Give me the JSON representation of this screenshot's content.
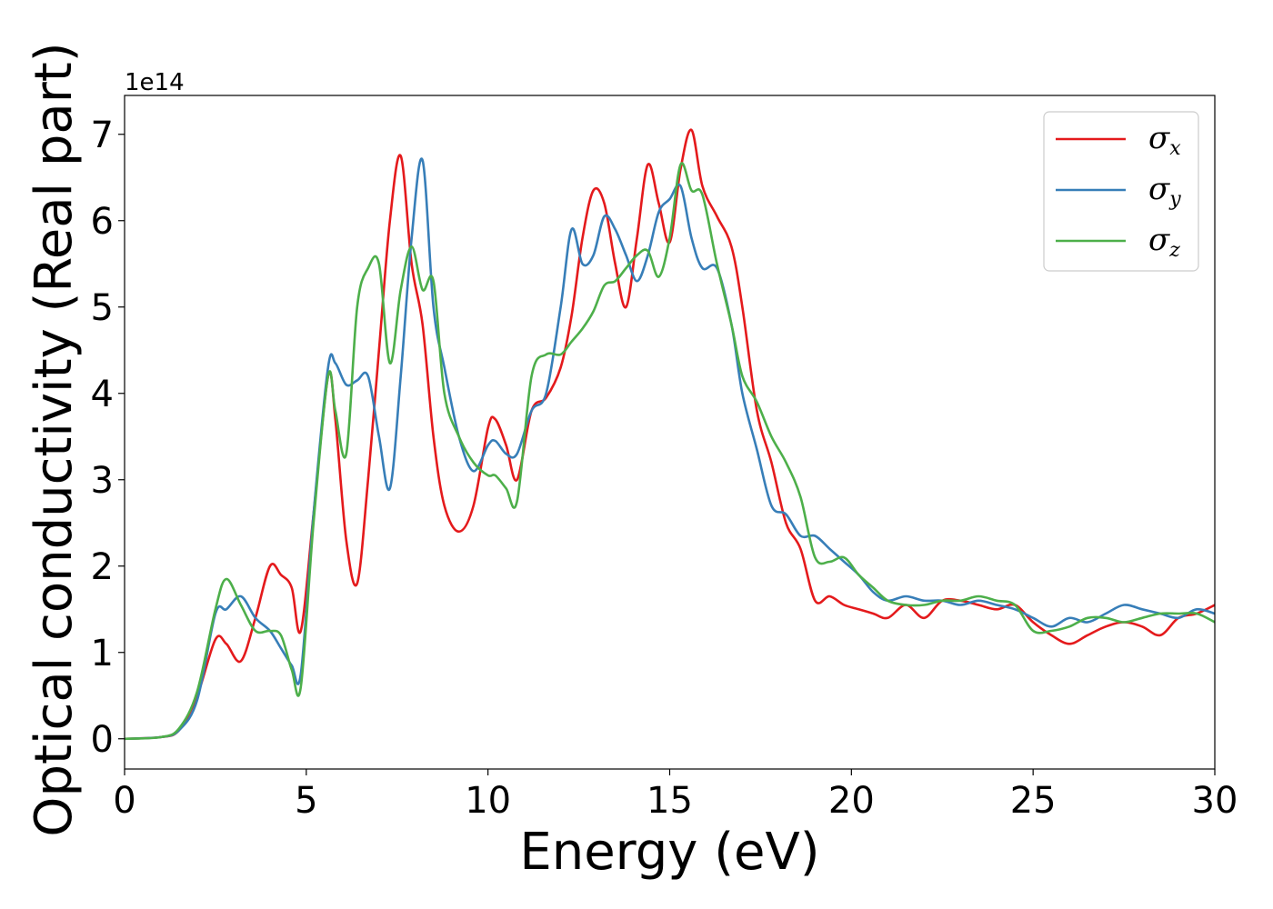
{
  "chart_data": {
    "type": "line",
    "title": "",
    "xlabel": "Energy (eV)",
    "ylabel": "Optical conductivity (Real part)",
    "y_offset_label": "1e14",
    "xlim": [
      0,
      30
    ],
    "ylim": [
      -0.35,
      7.45
    ],
    "x_ticks": [
      0,
      5,
      10,
      15,
      20,
      25,
      30
    ],
    "y_ticks": [
      0,
      1,
      2,
      3,
      4,
      5,
      6,
      7
    ],
    "grid": false,
    "legend": "top-right",
    "x": [
      0,
      1,
      1.5,
      2,
      2.5,
      2.8,
      3.2,
      3.6,
      4,
      4.3,
      4.6,
      4.85,
      5.2,
      5.6,
      5.8,
      6.1,
      6.4,
      6.7,
      7,
      7.3,
      7.6,
      7.9,
      8.2,
      8.5,
      8.8,
      9.2,
      9.6,
      10,
      10.2,
      10.5,
      10.8,
      11.2,
      11.6,
      12,
      12.3,
      12.6,
      12.9,
      13.2,
      13.5,
      13.8,
      14.1,
      14.4,
      14.7,
      15,
      15.3,
      15.6,
      15.9,
      16.3,
      16.7,
      17,
      17.4,
      17.8,
      18.2,
      18.6,
      19,
      19.4,
      19.8,
      20.2,
      20.6,
      21,
      21.5,
      22,
      22.5,
      23,
      23.5,
      24,
      24.5,
      25,
      25.5,
      26,
      26.5,
      27,
      27.5,
      28,
      28.5,
      29,
      29.5,
      30
    ],
    "series": [
      {
        "name": "σx",
        "color": "#e41a1c",
        "values": [
          0,
          0.02,
          0.1,
          0.5,
          1.15,
          1.1,
          0.9,
          1.4,
          2.0,
          1.9,
          1.75,
          1.25,
          2.6,
          4.2,
          3.7,
          2.3,
          1.8,
          3.0,
          4.5,
          6.0,
          6.75,
          5.5,
          4.8,
          3.5,
          2.7,
          2.4,
          2.7,
          3.6,
          3.7,
          3.4,
          3.0,
          3.8,
          3.95,
          4.3,
          4.9,
          5.8,
          6.35,
          6.2,
          5.5,
          5.0,
          5.8,
          6.65,
          6.2,
          5.75,
          6.6,
          7.05,
          6.4,
          6.05,
          5.7,
          5.0,
          3.8,
          3.2,
          2.5,
          2.2,
          1.6,
          1.65,
          1.55,
          1.5,
          1.45,
          1.4,
          1.55,
          1.4,
          1.6,
          1.6,
          1.55,
          1.5,
          1.55,
          1.35,
          1.2,
          1.1,
          1.2,
          1.3,
          1.35,
          1.3,
          1.2,
          1.4,
          1.45,
          1.55
        ]
      },
      {
        "name": "σy",
        "color": "#377eb8",
        "values": [
          0,
          0.02,
          0.1,
          0.45,
          1.45,
          1.5,
          1.65,
          1.4,
          1.25,
          1.05,
          0.85,
          0.75,
          2.6,
          4.3,
          4.35,
          4.1,
          4.15,
          4.2,
          3.5,
          2.9,
          4.2,
          5.8,
          6.7,
          5.0,
          4.3,
          3.5,
          3.1,
          3.4,
          3.45,
          3.3,
          3.3,
          3.8,
          4.0,
          5.0,
          5.9,
          5.5,
          5.6,
          6.05,
          5.9,
          5.6,
          5.3,
          5.6,
          6.1,
          6.25,
          6.4,
          5.8,
          5.45,
          5.45,
          4.8,
          4.0,
          3.35,
          2.7,
          2.6,
          2.35,
          2.35,
          2.2,
          2.05,
          1.9,
          1.7,
          1.6,
          1.65,
          1.6,
          1.6,
          1.55,
          1.6,
          1.55,
          1.5,
          1.4,
          1.3,
          1.4,
          1.35,
          1.45,
          1.55,
          1.5,
          1.45,
          1.4,
          1.5,
          1.45
        ]
      },
      {
        "name": "σz",
        "color": "#4daf4a",
        "values": [
          0,
          0.02,
          0.12,
          0.55,
          1.5,
          1.85,
          1.55,
          1.25,
          1.25,
          1.2,
          0.8,
          0.6,
          2.5,
          4.2,
          3.8,
          3.3,
          5.0,
          5.45,
          5.5,
          4.35,
          5.2,
          5.7,
          5.2,
          5.3,
          4.0,
          3.5,
          3.2,
          3.05,
          3.05,
          2.9,
          2.75,
          4.2,
          4.45,
          4.45,
          4.6,
          4.75,
          4.95,
          5.25,
          5.3,
          5.45,
          5.6,
          5.65,
          5.35,
          5.8,
          6.65,
          6.35,
          6.3,
          5.5,
          4.8,
          4.2,
          3.9,
          3.5,
          3.2,
          2.8,
          2.1,
          2.05,
          2.1,
          1.9,
          1.75,
          1.6,
          1.55,
          1.55,
          1.6,
          1.6,
          1.65,
          1.6,
          1.55,
          1.25,
          1.25,
          1.3,
          1.4,
          1.4,
          1.35,
          1.4,
          1.45,
          1.45,
          1.45,
          1.35
        ]
      }
    ]
  }
}
